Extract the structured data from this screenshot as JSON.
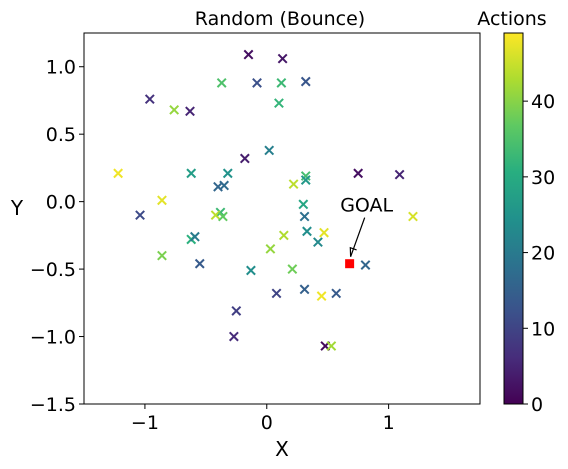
{
  "chart_data": {
    "type": "scatter",
    "title": "Random (Bounce)",
    "xlabel": "X",
    "ylabel": "Y",
    "xlim": [
      -1.5,
      1.75
    ],
    "ylim": [
      -1.5,
      1.25
    ],
    "xticks": [
      -1,
      0,
      1
    ],
    "xtick_labels": [
      "−1",
      "0",
      "1"
    ],
    "yticks": [
      1.0,
      0.5,
      0.0,
      -0.5,
      -1.0,
      -1.5
    ],
    "ytick_labels": [
      "1.0",
      "0.5",
      "0.0",
      "−0.5",
      "−1.0",
      "−1.5"
    ],
    "grid": false,
    "marker": "x",
    "colormap": "viridis",
    "colorbar": {
      "label": "Actions",
      "range": [
        0,
        49
      ],
      "ticks": [
        0,
        10,
        20,
        30,
        40
      ],
      "tick_labels": [
        "0",
        "10",
        "20",
        "30",
        "40"
      ]
    },
    "points": [
      {
        "x": -0.15,
        "y": 1.09,
        "action": 2
      },
      {
        "x": 0.13,
        "y": 1.06,
        "action": 3
      },
      {
        "x": -0.37,
        "y": 0.88,
        "action": 35
      },
      {
        "x": -0.08,
        "y": 0.88,
        "action": 12
      },
      {
        "x": 0.12,
        "y": 0.88,
        "action": 33
      },
      {
        "x": 0.32,
        "y": 0.89,
        "action": 13
      },
      {
        "x": -0.96,
        "y": 0.76,
        "action": 7
      },
      {
        "x": -0.76,
        "y": 0.68,
        "action": 41
      },
      {
        "x": -0.63,
        "y": 0.67,
        "action": 5
      },
      {
        "x": 0.1,
        "y": 0.73,
        "action": 32
      },
      {
        "x": 0.02,
        "y": 0.38,
        "action": 21
      },
      {
        "x": -0.18,
        "y": 0.32,
        "action": 4
      },
      {
        "x": -1.22,
        "y": 0.21,
        "action": 48
      },
      {
        "x": -0.62,
        "y": 0.21,
        "action": 27
      },
      {
        "x": -0.35,
        "y": 0.12,
        "action": 17
      },
      {
        "x": -0.32,
        "y": 0.21,
        "action": 25
      },
      {
        "x": -0.4,
        "y": 0.11,
        "action": 16
      },
      {
        "x": 0.32,
        "y": 0.19,
        "action": 34
      },
      {
        "x": 0.32,
        "y": 0.16,
        "action": 26
      },
      {
        "x": 0.75,
        "y": 0.21,
        "action": 2
      },
      {
        "x": 1.09,
        "y": 0.2,
        "action": 5
      },
      {
        "x": 0.22,
        "y": 0.13,
        "action": 44
      },
      {
        "x": -0.86,
        "y": 0.01,
        "action": 47
      },
      {
        "x": 0.3,
        "y": -0.02,
        "action": 29
      },
      {
        "x": -1.04,
        "y": -0.1,
        "action": 11
      },
      {
        "x": -0.38,
        "y": -0.08,
        "action": 33
      },
      {
        "x": -0.42,
        "y": -0.1,
        "action": 44
      },
      {
        "x": -0.36,
        "y": -0.11,
        "action": 37
      },
      {
        "x": 0.31,
        "y": -0.11,
        "action": 18
      },
      {
        "x": 1.2,
        "y": -0.11,
        "action": 46
      },
      {
        "x": 0.33,
        "y": -0.22,
        "action": 24
      },
      {
        "x": 0.14,
        "y": -0.25,
        "action": 43
      },
      {
        "x": 0.47,
        "y": -0.23,
        "action": 47
      },
      {
        "x": -0.62,
        "y": -0.28,
        "action": 31
      },
      {
        "x": -0.59,
        "y": -0.26,
        "action": 20
      },
      {
        "x": 0.42,
        "y": -0.3,
        "action": 23
      },
      {
        "x": 0.03,
        "y": -0.35,
        "action": 41
      },
      {
        "x": -0.86,
        "y": -0.4,
        "action": 39
      },
      {
        "x": -0.55,
        "y": -0.46,
        "action": 14
      },
      {
        "x": -0.13,
        "y": -0.51,
        "action": 24
      },
      {
        "x": 0.21,
        "y": -0.5,
        "action": 38
      },
      {
        "x": 0.81,
        "y": -0.47,
        "action": 16
      },
      {
        "x": 0.31,
        "y": -0.65,
        "action": 15
      },
      {
        "x": 0.08,
        "y": -0.68,
        "action": 10
      },
      {
        "x": 0.45,
        "y": -0.7,
        "action": 48
      },
      {
        "x": 0.57,
        "y": -0.68,
        "action": 14
      },
      {
        "x": -0.25,
        "y": -0.81,
        "action": 9
      },
      {
        "x": -0.27,
        "y": -1.0,
        "action": 6
      },
      {
        "x": 0.48,
        "y": -1.07,
        "action": 1
      },
      {
        "x": 0.53,
        "y": -1.07,
        "action": 42
      }
    ],
    "goal": {
      "x": 0.68,
      "y": -0.46,
      "label": "GOAL",
      "color": "#ff0000",
      "marker": "square"
    },
    "goal_annotation_text_at": {
      "x": 0.82,
      "y": 0.0
    }
  }
}
